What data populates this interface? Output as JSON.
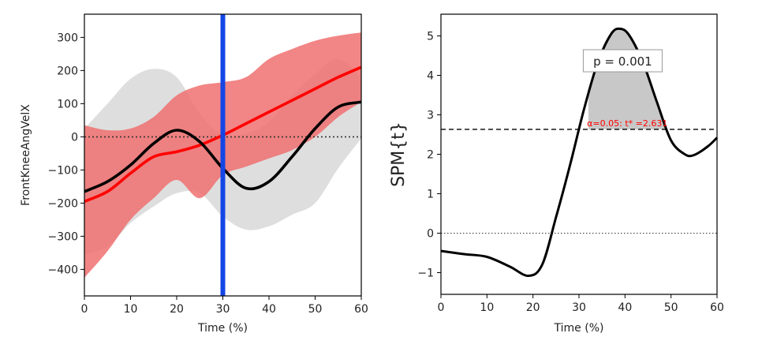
{
  "chart_data": [
    {
      "type": "line",
      "xlabel": "Time (%)",
      "ylabel": "FrontKneeAngVelX",
      "xlim": [
        0,
        60
      ],
      "ylim": [
        -480,
        370
      ],
      "xticks": [
        "0",
        "10",
        "20",
        "30",
        "40",
        "50",
        "60"
      ],
      "yticks": [
        "300",
        "200",
        "100",
        "0",
        "−100",
        "−200",
        "−300",
        "−400"
      ],
      "ytick_values": [
        300,
        200,
        100,
        0,
        -100,
        -200,
        -300,
        -400
      ],
      "reference_line_y": 0,
      "vertical_marker_x": 30,
      "colors": {
        "series_a": "#000000",
        "band_a": "#d3d3d3",
        "series_b": "#ff0000",
        "band_b": "#f07070",
        "marker": "#1446e6"
      },
      "series": [
        {
          "x": [
            0,
            5,
            10,
            15,
            20,
            25,
            30,
            35,
            40,
            45,
            50,
            55,
            60
          ],
          "mean": [
            -165,
            -135,
            -85,
            -20,
            20,
            -15,
            -95,
            -155,
            -135,
            -60,
            25,
            90,
            105
          ],
          "upper": [
            25,
            100,
            175,
            205,
            180,
            70,
            5,
            10,
            45,
            125,
            190,
            235,
            180
          ],
          "lower": [
            -355,
            -330,
            -260,
            -210,
            -170,
            -170,
            -240,
            -280,
            -270,
            -235,
            -200,
            -95,
            -5
          ]
        },
        {
          "x": [
            0,
            5,
            10,
            15,
            20,
            25,
            30,
            35,
            40,
            45,
            50,
            55,
            60
          ],
          "mean": [
            -195,
            -165,
            -110,
            -60,
            -45,
            -25,
            5,
            40,
            75,
            110,
            145,
            180,
            210
          ],
          "upper": [
            35,
            20,
            25,
            60,
            125,
            155,
            165,
            180,
            235,
            265,
            290,
            305,
            315
          ],
          "lower": [
            -425,
            -345,
            -250,
            -185,
            -130,
            -185,
            -115,
            -90,
            -65,
            -40,
            0,
            60,
            105
          ]
        }
      ]
    },
    {
      "type": "line",
      "xlabel": "Time (%)",
      "ylabel": "SPM{t}",
      "xlim": [
        0,
        60
      ],
      "ylim": [
        -1.55,
        5.55
      ],
      "xticks": [
        "0",
        "10",
        "20",
        "30",
        "40",
        "50",
        "60"
      ],
      "yticks": [
        "5",
        "4",
        "3",
        "2",
        "1",
        "0",
        "−1"
      ],
      "ytick_values": [
        5,
        4,
        3,
        2,
        1,
        0,
        -1
      ],
      "threshold": 2.631,
      "threshold_label": "α=0.05:  t* =2.631",
      "p_label": "p = 0.001",
      "cluster_x": [
        32,
        48.6
      ],
      "colors": {
        "curve": "#000000",
        "cluster": "#c8c8c8",
        "threshold_text": "#ff0000"
      },
      "x": [
        0,
        5,
        10,
        15,
        19,
        22,
        25,
        28,
        31,
        34,
        37,
        39,
        41,
        44,
        47,
        50,
        53,
        55,
        58,
        60
      ],
      "values": [
        -0.45,
        -0.53,
        -0.6,
        -0.85,
        -1.08,
        -0.8,
        0.4,
        1.7,
        3.1,
        4.3,
        5.05,
        5.18,
        5.0,
        4.3,
        3.3,
        2.35,
        2.0,
        1.98,
        2.2,
        2.42
      ]
    }
  ]
}
